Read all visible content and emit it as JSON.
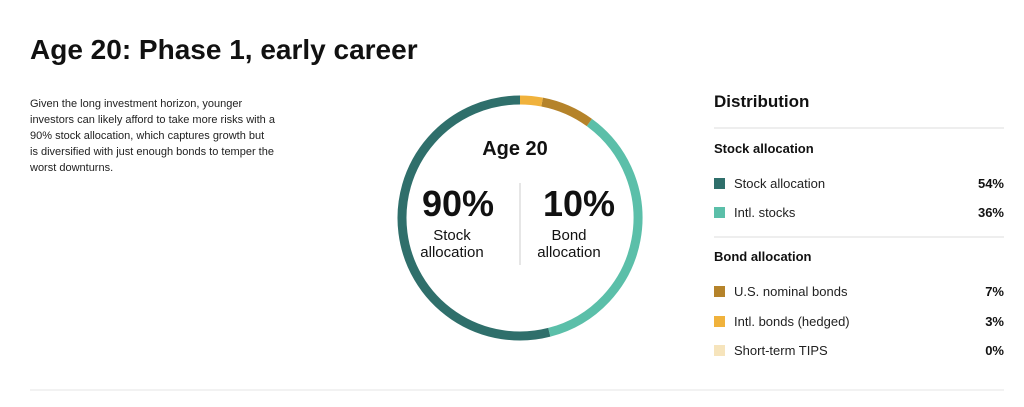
{
  "header": {
    "title": "Age 20: Phase 1, early career"
  },
  "description": "Given the long investment horizon, younger investors can likely afford to take more risks with a 90% stock allocation, which captures growth but is diversified with just enough bonds to temper the worst downturns.",
  "chart_data": {
    "type": "donut",
    "title": "Distribution",
    "center": {
      "title": "Age 20",
      "groups": [
        {
          "value": 90,
          "label": "90%",
          "name": "Stock allocation"
        },
        {
          "value": 10,
          "label": "10%",
          "name": "Bond allocation"
        }
      ]
    },
    "groups": [
      {
        "name": "Stock allocation",
        "categories": [
          "Stock allocation",
          "Intl. stocks"
        ],
        "values": [
          54,
          36
        ],
        "value_labels": [
          "54%",
          "36%"
        ],
        "colors": [
          "#2f6f6b",
          "#5bbfa9"
        ]
      },
      {
        "name": "Bond allocation",
        "categories": [
          "U.S. nominal bonds",
          "Intl. bonds (hedged)",
          "Short-term TIPS"
        ],
        "values": [
          7,
          3,
          0
        ],
        "value_labels": [
          "7%",
          "3%",
          "0%"
        ],
        "colors": [
          "#b5832a",
          "#f0b23c",
          "#f6e4bc"
        ]
      }
    ]
  }
}
